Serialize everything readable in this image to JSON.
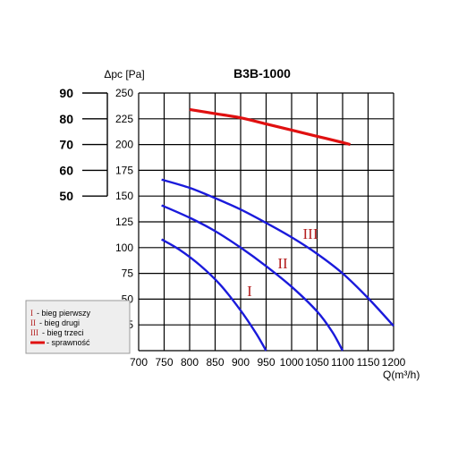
{
  "chart_data": {
    "type": "line",
    "title": "B3B-1000",
    "ylabel": "Δpc [Pa]",
    "xlabel": "Q(m³/h)",
    "x_ticks": [
      "700",
      "750",
      "800",
      "850",
      "900",
      "950",
      "1000",
      "1050",
      "1100",
      "1150",
      "1200"
    ],
    "y_ticks": [
      "25",
      "50",
      "75",
      "100",
      "125",
      "150",
      "175",
      "200",
      "225",
      "250"
    ],
    "xlim": [
      700,
      1200
    ],
    "ylim": [
      0,
      250
    ],
    "grid": true,
    "efficiency_axis": {
      "ticks": [
        "90",
        "80",
        "70",
        "60",
        "50"
      ]
    },
    "series": [
      {
        "name": "I",
        "label": "I",
        "legend_text": "- bieg pierwszy",
        "color": "#1a1adb",
        "x": [
          745,
          780,
          820,
          860,
          900,
          930,
          950
        ],
        "y": [
          108,
          98,
          83,
          64,
          39,
          17,
          0
        ]
      },
      {
        "name": "II",
        "label": "II",
        "legend_text": "- bieg drugi",
        "color": "#1a1adb",
        "x": [
          745,
          800,
          850,
          900,
          950,
          1000,
          1050,
          1080,
          1100
        ],
        "y": [
          141,
          129,
          116,
          100,
          82,
          62,
          38,
          18,
          0
        ]
      },
      {
        "name": "III",
        "label": "III",
        "legend_text": "- bieg trzeci",
        "color": "#1a1adb",
        "x": [
          745,
          800,
          850,
          900,
          950,
          1000,
          1050,
          1100,
          1150,
          1200
        ],
        "y": [
          166,
          158,
          148,
          137,
          124,
          110,
          94,
          75,
          51,
          24
        ]
      },
      {
        "name": "sprawność",
        "legend_text": "- sprawność",
        "color": "#e01010",
        "x": [
          800,
          850,
          900,
          950,
          1000,
          1050,
          1100,
          1115
        ],
        "y": [
          234,
          230,
          226,
          220,
          214,
          208,
          202,
          200
        ]
      }
    ]
  }
}
